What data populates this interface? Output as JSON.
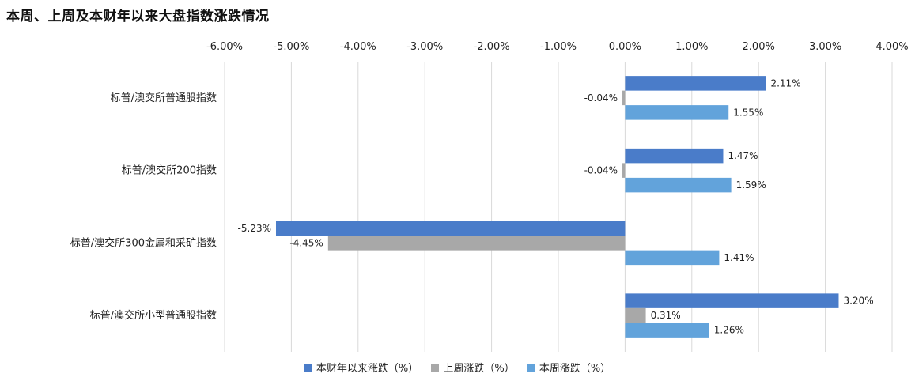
{
  "title": "本周、上周及本财年以来大盘指数涨跌情况",
  "chart_data": {
    "type": "bar",
    "orientation": "horizontal",
    "title": "本周、上周及本财年以来大盘指数涨跌情况",
    "xlim": [
      -6,
      4
    ],
    "x_ticks": [
      "-6.00%",
      "-5.00%",
      "-4.00%",
      "-3.00%",
      "-2.00%",
      "-1.00%",
      "0.00%",
      "1.00%",
      "2.00%",
      "3.00%",
      "4.00%"
    ],
    "grid": true,
    "legend_position": "bottom",
    "categories": [
      "标普/澳交所普通股指数",
      "标普/澳交所200指数",
      "标普/澳交所300金属和采矿指数",
      "标普/澳交所小型普通股指数"
    ],
    "series": [
      {
        "name": "本财年以来涨跌（%）",
        "color": "#4A7CC9",
        "values": [
          2.11,
          1.47,
          -5.23,
          3.2
        ],
        "labels": [
          "2.11%",
          "1.47%",
          "-5.23%",
          "3.20%"
        ]
      },
      {
        "name": "上周涨跌（%）",
        "color": "#A8A8A8",
        "values": [
          -0.04,
          -0.04,
          -4.45,
          0.31
        ],
        "labels": [
          "-0.04%",
          "-0.04%",
          "-4.45%",
          "0.31%"
        ]
      },
      {
        "name": "本周涨跌（%）",
        "color": "#62A3DB",
        "values": [
          1.55,
          1.59,
          1.41,
          1.26
        ],
        "labels": [
          "1.55%",
          "1.59%",
          "1.41%",
          "1.26%"
        ]
      }
    ]
  }
}
